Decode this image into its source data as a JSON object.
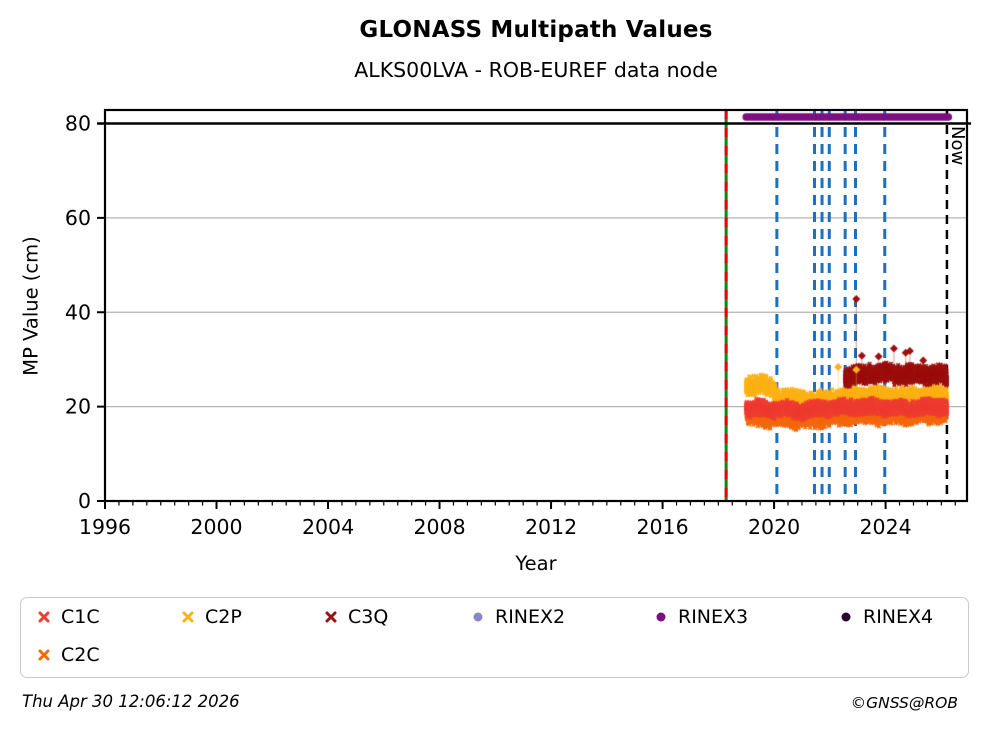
{
  "header": {
    "title": "GLONASS Multipath Values",
    "subtitle": "ALKS00LVA - ROB-EUREF data node"
  },
  "footer": {
    "timestamp": "Thu Apr 30 12:06:12 2026",
    "credit": "©GNSS@ROB"
  },
  "chart_data": {
    "type": "scatter",
    "title": "GLONASS Multipath Values",
    "subtitle": "ALKS00LVA - ROB-EUREF data node",
    "xlabel": "Year",
    "ylabel": "MP Value (cm)",
    "xlim": [
      1996,
      2026.92
    ],
    "ylim": [
      0,
      82.86
    ],
    "xticks": [
      1996,
      2000,
      2004,
      2008,
      2012,
      2016,
      2020,
      2024
    ],
    "x_minor_step": 0.5,
    "yticks": [
      0,
      20,
      40,
      60,
      80
    ],
    "grid": {
      "horizontal_at": [
        20,
        40,
        60
      ],
      "color": "#b3b3b3",
      "vertical": false
    },
    "threshold_line": {
      "y": 80,
      "color": "#000000"
    },
    "now_marker": {
      "x": 2026.2,
      "label": "Now",
      "color": "#000000",
      "style": "dashed"
    },
    "event_lines": {
      "green_red_line": {
        "x": 2018.28,
        "green": "#0a8a0a",
        "red": "#e8000b"
      },
      "blue_dashed_color": "#1d6fc0",
      "blue_dashed_x": [
        2020.1,
        2021.45,
        2021.72,
        2021.98,
        2022.55,
        2022.92,
        2023.97
      ]
    },
    "series": [
      {
        "name": "C1C",
        "color": "#ee3d33",
        "marker": "x",
        "kind": "band",
        "seed": 11,
        "x_start": 2019.0,
        "x_end": 2026.2,
        "spread": 1.15,
        "mean_keypoints": [
          [
            2019.0,
            19.8
          ],
          [
            2020.0,
            19.4
          ],
          [
            2021.0,
            19.2
          ],
          [
            2022.0,
            19.7
          ],
          [
            2023.0,
            20.0
          ],
          [
            2024.5,
            19.7
          ],
          [
            2025.4,
            19.9
          ],
          [
            2026.2,
            20.0
          ]
        ]
      },
      {
        "name": "C2P",
        "color": "#fcb216",
        "marker": "x",
        "kind": "band",
        "seed": 22,
        "x_start": 2019.0,
        "x_end": 2026.2,
        "spread": 1.55,
        "mean_keypoints": [
          [
            2019.0,
            24.3
          ],
          [
            2019.55,
            24.8
          ],
          [
            2019.95,
            23.6
          ],
          [
            2020.15,
            21.9
          ],
          [
            2020.8,
            21.6
          ],
          [
            2021.6,
            21.2
          ],
          [
            2022.2,
            21.6
          ],
          [
            2022.7,
            22.2
          ],
          [
            2023.6,
            22.3
          ],
          [
            2024.6,
            21.9
          ],
          [
            2025.4,
            22.3
          ],
          [
            2026.2,
            22.4
          ]
        ]
      },
      {
        "name": "C3Q",
        "color": "#9c100f",
        "marker": "x",
        "kind": "band",
        "seed": 33,
        "x_start": 2022.55,
        "x_end": 2026.2,
        "spread": 1.6,
        "mean_keypoints": [
          [
            2022.55,
            25.8
          ],
          [
            2022.9,
            26.6
          ],
          [
            2023.4,
            27.0
          ],
          [
            2024.0,
            27.2
          ],
          [
            2024.8,
            26.8
          ],
          [
            2025.5,
            27.0
          ],
          [
            2026.2,
            26.4
          ]
        ]
      },
      {
        "name": "RINEX2",
        "color": "#8888c4",
        "marker": "dot",
        "kind": "none"
      },
      {
        "name": "RINEX3",
        "color": "#7d0d80",
        "marker": "dot",
        "kind": "hbar",
        "x_start": 2019.0,
        "x_end": 2026.25,
        "y": 81.4
      },
      {
        "name": "RINEX4",
        "color": "#2e082c",
        "marker": "dot",
        "kind": "none"
      },
      {
        "name": "C2C",
        "color": "#f4690f",
        "marker": "x",
        "kind": "band",
        "seed": 44,
        "x_start": 2019.02,
        "x_end": 2026.2,
        "spread": 1.5,
        "mean_keypoints": [
          [
            2019.02,
            18.0
          ],
          [
            2020.0,
            17.6
          ],
          [
            2021.0,
            17.3
          ],
          [
            2022.0,
            17.8
          ],
          [
            2023.0,
            18.2
          ],
          [
            2024.0,
            18.0
          ],
          [
            2025.0,
            18.3
          ],
          [
            2026.2,
            18.5
          ]
        ]
      }
    ],
    "outliers": [
      {
        "series": "C3Q",
        "x": 2022.95,
        "y": 42.8
      },
      {
        "series": "C3Q",
        "x": 2023.15,
        "y": 30.8
      },
      {
        "series": "C3Q",
        "x": 2023.75,
        "y": 30.6
      },
      {
        "series": "C3Q",
        "x": 2024.3,
        "y": 32.3
      },
      {
        "series": "C3Q",
        "x": 2024.72,
        "y": 31.4
      },
      {
        "series": "C3Q",
        "x": 2024.87,
        "y": 31.8
      },
      {
        "series": "C3Q",
        "x": 2025.35,
        "y": 29.8
      },
      {
        "series": "C2P",
        "x": 2022.3,
        "y": 28.4
      },
      {
        "series": "C2P",
        "x": 2022.95,
        "y": 27.8
      }
    ],
    "legend_order": [
      "C1C",
      "C2P",
      "C3Q",
      "RINEX2",
      "RINEX3",
      "RINEX4",
      "C2C"
    ]
  }
}
